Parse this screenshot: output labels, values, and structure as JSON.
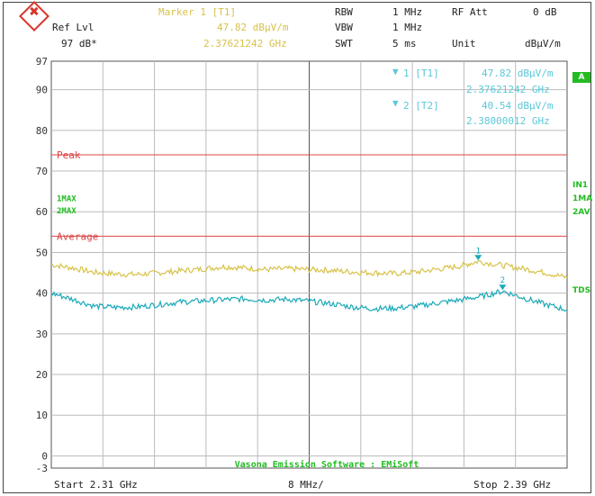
{
  "header": {
    "ref_lvl_label": "Ref Lvl",
    "ref_lvl_value": "97 dB*",
    "marker_title": "Marker 1 [T1]",
    "marker_value": "47.82 dBµV/m",
    "marker_freq": "2.37621242 GHz",
    "rbw_label": "RBW",
    "rbw_value": "1 MHz",
    "vbw_label": "VBW",
    "vbw_value": "1 MHz",
    "swt_label": "SWT",
    "swt_value": "5 ms",
    "rfatt_label": "RF Att",
    "rfatt_value": "0 dB",
    "unit_label": "Unit",
    "unit_value": "dBµV/m"
  },
  "markers_box": {
    "m1_label": "1 [T1]",
    "m1_value": "47.82 dBµV/m",
    "m1_freq": "2.37621242 GHz",
    "m2_label": "2 [T2]",
    "m2_value": "40.54 dBµV/m",
    "m2_freq": "2.38000012 GHz"
  },
  "side_labels": {
    "a": "A",
    "in1": "IN1",
    "ma1": "1MA",
    "av2": "2AV",
    "tds": "TDS"
  },
  "footer": {
    "start": "Start 2.31 GHz",
    "span": "8 MHz/",
    "stop": "Stop 2.39 GHz"
  },
  "chart_data": {
    "type": "line",
    "xlim": [
      2.31,
      2.39
    ],
    "ylim": [
      -3,
      97
    ],
    "yticks": [
      97,
      90,
      80,
      70,
      60,
      50,
      40,
      30,
      20,
      10,
      0,
      -3
    ],
    "grid": true,
    "left_labels": [
      "1MAX",
      "2MAX"
    ],
    "left_label_y": [
      63.5,
      60.5
    ],
    "limit_lines": [
      {
        "name": "Peak",
        "y": 74,
        "color": "#dd4444"
      },
      {
        "name": "Average",
        "y": 54,
        "color": "#dd4444"
      }
    ],
    "watermark": "Vasona Emission Software : EMiSoft",
    "series": [
      {
        "color": "#d8c24a",
        "x": [
          2.31,
          2.3133,
          2.3167,
          2.32,
          2.3233,
          2.3267,
          2.33,
          2.3333,
          2.3367,
          2.34,
          2.3433,
          2.3467,
          2.35,
          2.3533,
          2.3567,
          2.36,
          2.3633,
          2.3667,
          2.37,
          2.3733,
          2.3762,
          2.38,
          2.3833,
          2.3867,
          2.39
        ],
        "values": [
          47,
          46.2,
          45.1,
          44.7,
          44.6,
          45.0,
          45.5,
          45.9,
          46.5,
          46.2,
          45.8,
          46.0,
          45.8,
          45.6,
          45.2,
          45.0,
          44.8,
          45.2,
          45.9,
          46.6,
          47.8,
          46.8,
          46.0,
          45.0,
          43.8
        ]
      },
      {
        "color": "#1aa9b8",
        "x": [
          2.31,
          2.3133,
          2.3167,
          2.32,
          2.3233,
          2.3267,
          2.33,
          2.3333,
          2.3367,
          2.34,
          2.3433,
          2.3467,
          2.35,
          2.3533,
          2.3567,
          2.36,
          2.3633,
          2.3667,
          2.37,
          2.3733,
          2.3767,
          2.38,
          2.3833,
          2.3867,
          2.39
        ],
        "values": [
          40.0,
          38.5,
          36.8,
          36.5,
          36.6,
          37.2,
          37.8,
          38.1,
          38.4,
          38.6,
          38.3,
          38.5,
          38.0,
          37.4,
          36.6,
          36.2,
          36.3,
          36.8,
          37.6,
          38.3,
          39.2,
          40.5,
          38.8,
          37.2,
          35.9
        ]
      }
    ],
    "markers": [
      {
        "label": "1",
        "x": 2.37621242,
        "y": 47.82,
        "color": "#1aa9b8"
      },
      {
        "label": "2",
        "x": 2.38000012,
        "y": 40.54,
        "color": "#1aa9b8"
      }
    ]
  }
}
